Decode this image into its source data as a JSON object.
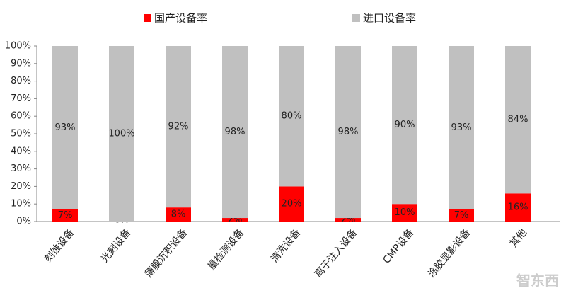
{
  "chart_data": {
    "type": "stacked_bar",
    "categories": [
      "刻蚀设备",
      "光刻设备",
      "薄膜沉积设备",
      "量检测设备",
      "清洗设备",
      "离子注入设备",
      "CMP设备",
      "涂胶显影设备",
      "其他"
    ],
    "series": [
      {
        "name": "国产设备率",
        "color": "#ff0000",
        "values": [
          7,
          0,
          8,
          2,
          20,
          2,
          10,
          7,
          16
        ],
        "value_labels": [
          "7%",
          "0%",
          "8%",
          "2%",
          "20%",
          "2%",
          "10%",
          "7%",
          "16%"
        ]
      },
      {
        "name": "进口设备率",
        "color": "#c0c0c0",
        "values": [
          93,
          100,
          92,
          98,
          80,
          98,
          90,
          93,
          84
        ],
        "value_labels": [
          "93%",
          "100%",
          "92%",
          "98%",
          "80%",
          "98%",
          "90%",
          "93%",
          "84%"
        ]
      }
    ],
    "ylim": [
      0,
      100
    ],
    "yticks": [
      {
        "value": 0,
        "label": "0%"
      },
      {
        "value": 10,
        "label": "10%"
      },
      {
        "value": 20,
        "label": "20%"
      },
      {
        "value": 30,
        "label": "30%"
      },
      {
        "value": 40,
        "label": "40%"
      },
      {
        "value": 50,
        "label": "50%"
      },
      {
        "value": 60,
        "label": "60%"
      },
      {
        "value": 70,
        "label": "70%"
      },
      {
        "value": 80,
        "label": "80%"
      },
      {
        "value": 90,
        "label": "90%"
      },
      {
        "value": 100,
        "label": "100%"
      }
    ],
    "legend_position": "top",
    "watermark": "智东西"
  }
}
